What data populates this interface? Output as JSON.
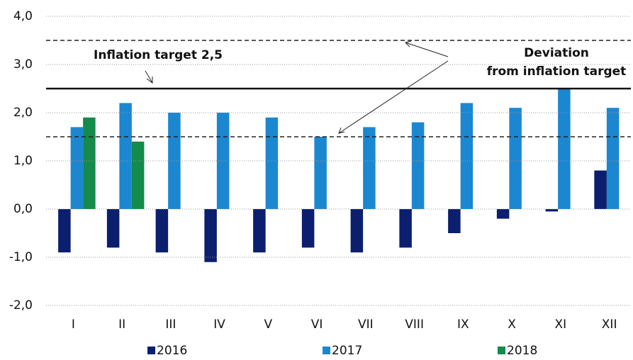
{
  "chart_data": {
    "type": "bar",
    "categories": [
      "I",
      "II",
      "III",
      "IV",
      "V",
      "VI",
      "VII",
      "VIII",
      "IX",
      "X",
      "XI",
      "XII"
    ],
    "series": [
      {
        "name": "2016",
        "color": "#0b1f6e",
        "values": [
          -0.9,
          -0.8,
          -0.9,
          -1.1,
          -0.9,
          -0.8,
          -0.9,
          -0.8,
          -0.5,
          -0.2,
          -0.05,
          0.8
        ]
      },
      {
        "name": "2017",
        "color": "#1c87d1",
        "values": [
          1.7,
          2.2,
          2.0,
          2.0,
          1.9,
          1.5,
          1.7,
          1.8,
          2.2,
          2.1,
          2.5,
          2.1
        ]
      },
      {
        "name": "2018",
        "color": "#148a4b",
        "values": [
          1.9,
          1.4,
          null,
          null,
          null,
          null,
          null,
          null,
          null,
          null,
          null,
          null
        ]
      }
    ],
    "ylim": [
      -2.0,
      4.0
    ],
    "yticks": [
      {
        "value": -2,
        "label": "-2,0"
      },
      {
        "value": -1,
        "label": "-1,0"
      },
      {
        "value": 0,
        "label": "0,0"
      },
      {
        "value": 1,
        "label": "1,0"
      },
      {
        "value": 2,
        "label": "2,0"
      },
      {
        "value": 3,
        "label": "3,0"
      },
      {
        "value": 4,
        "label": "4,0"
      }
    ],
    "grid": true,
    "target": 2.5,
    "deviation_band": [
      1.5,
      3.5
    ],
    "annotations": [
      "Inflation target 2,5",
      "Deviation",
      "from inflation target"
    ]
  }
}
